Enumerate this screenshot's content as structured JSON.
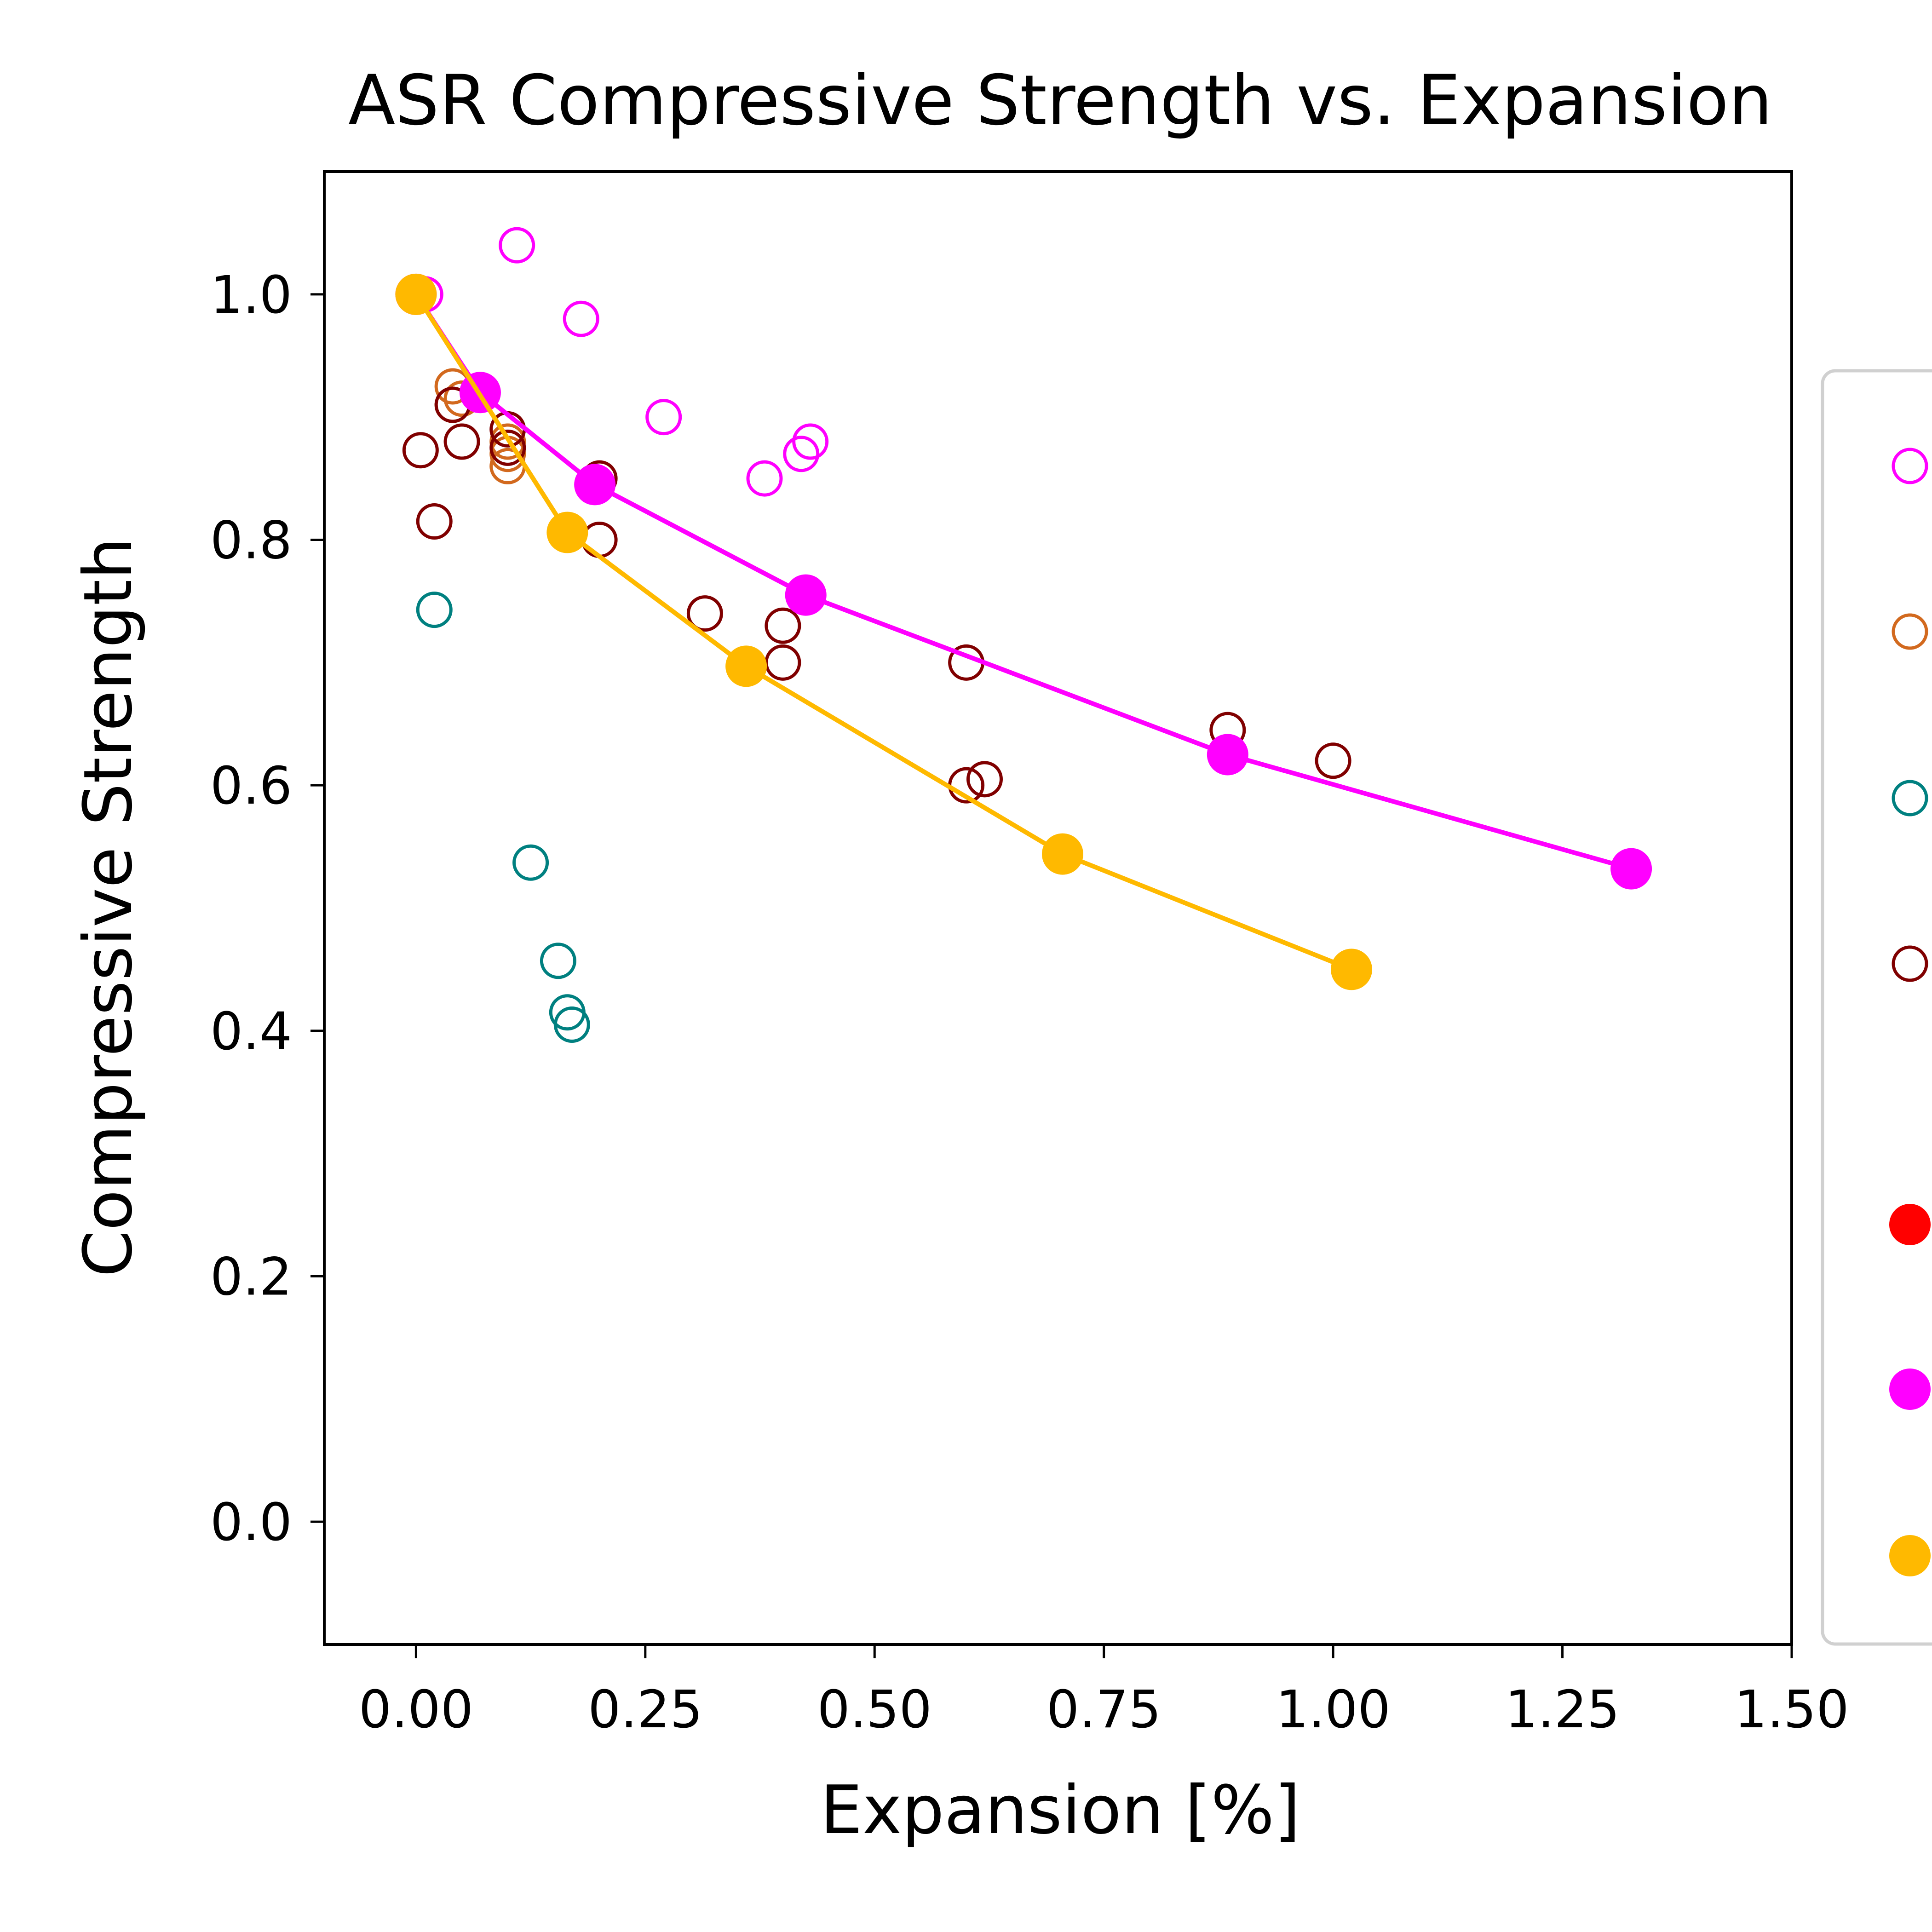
{
  "chart_data": {
    "type": "scatter",
    "title": "ASR Compressive Strength vs. Expansion",
    "xlabel": "Expansion [%]",
    "ylabel": "Compressive Strength",
    "xlim": [
      -0.1,
      1.5
    ],
    "ylim": [
      -0.1,
      1.1
    ],
    "xticks": [
      0.0,
      0.25,
      0.5,
      0.75,
      1.0,
      1.25,
      1.5
    ],
    "xtick_labels": [
      "0.00",
      "0.25",
      "0.50",
      "0.75",
      "1.00",
      "1.25",
      "1.50"
    ],
    "yticks": [
      0.0,
      0.2,
      0.4,
      0.6,
      0.8,
      1.0
    ],
    "ytick_labels": [
      "0.0",
      "0.2",
      "0.4",
      "0.6",
      "0.8",
      "1.0"
    ],
    "grid": false,
    "legend_placement": "right, outside plot, cut off at image edge",
    "series": [
      {
        "color": "#ff00ff",
        "marker": "open-circle",
        "line": false,
        "x": [
          0.01,
          0.11,
          0.18,
          0.27,
          0.38,
          0.42,
          0.43
        ],
        "y": [
          1.0,
          1.04,
          0.98,
          0.9,
          0.85,
          0.87,
          0.88
        ]
      },
      {
        "color": "#d2691e",
        "marker": "open-circle",
        "line": false,
        "x": [
          0.04,
          0.04,
          0.05,
          0.1,
          0.1,
          0.1
        ],
        "y": [
          0.925,
          0.91,
          0.915,
          0.88,
          0.87,
          0.86
        ]
      },
      {
        "color": "#008080",
        "marker": "open-circle",
        "line": false,
        "x": [
          0.02,
          0.125,
          0.155,
          0.165,
          0.17
        ],
        "y": [
          0.743,
          0.537,
          0.457,
          0.415,
          0.405
        ]
      },
      {
        "color": "#800000",
        "marker": "open-circle",
        "line": false,
        "x": [
          0.005,
          0.02,
          0.04,
          0.05,
          0.1,
          0.1,
          0.2,
          0.2,
          0.315,
          0.4,
          0.4,
          0.6,
          0.6,
          0.62,
          0.885,
          1.0
        ],
        "y": [
          0.873,
          0.815,
          0.91,
          0.88,
          0.89,
          0.875,
          0.85,
          0.8,
          0.74,
          0.73,
          0.7,
          0.7,
          0.6,
          0.605,
          0.645,
          0.62
        ]
      },
      {
        "color": "#ff0000",
        "marker": "filled-circle",
        "line": false,
        "x": [],
        "y": []
      },
      {
        "color": "#ff00ff",
        "marker": "filled-circle",
        "line": true,
        "x": [
          0.0,
          0.07,
          0.195,
          0.425,
          0.885,
          1.325
        ],
        "y": [
          1.0,
          0.92,
          0.845,
          0.755,
          0.625,
          0.532
        ]
      },
      {
        "color": "#ffb900",
        "marker": "filled-circle",
        "line": true,
        "x": [
          0.0,
          0.165,
          0.36,
          0.705,
          1.02
        ],
        "y": [
          1.0,
          0.806,
          0.697,
          0.544,
          0.45
        ]
      }
    ]
  }
}
